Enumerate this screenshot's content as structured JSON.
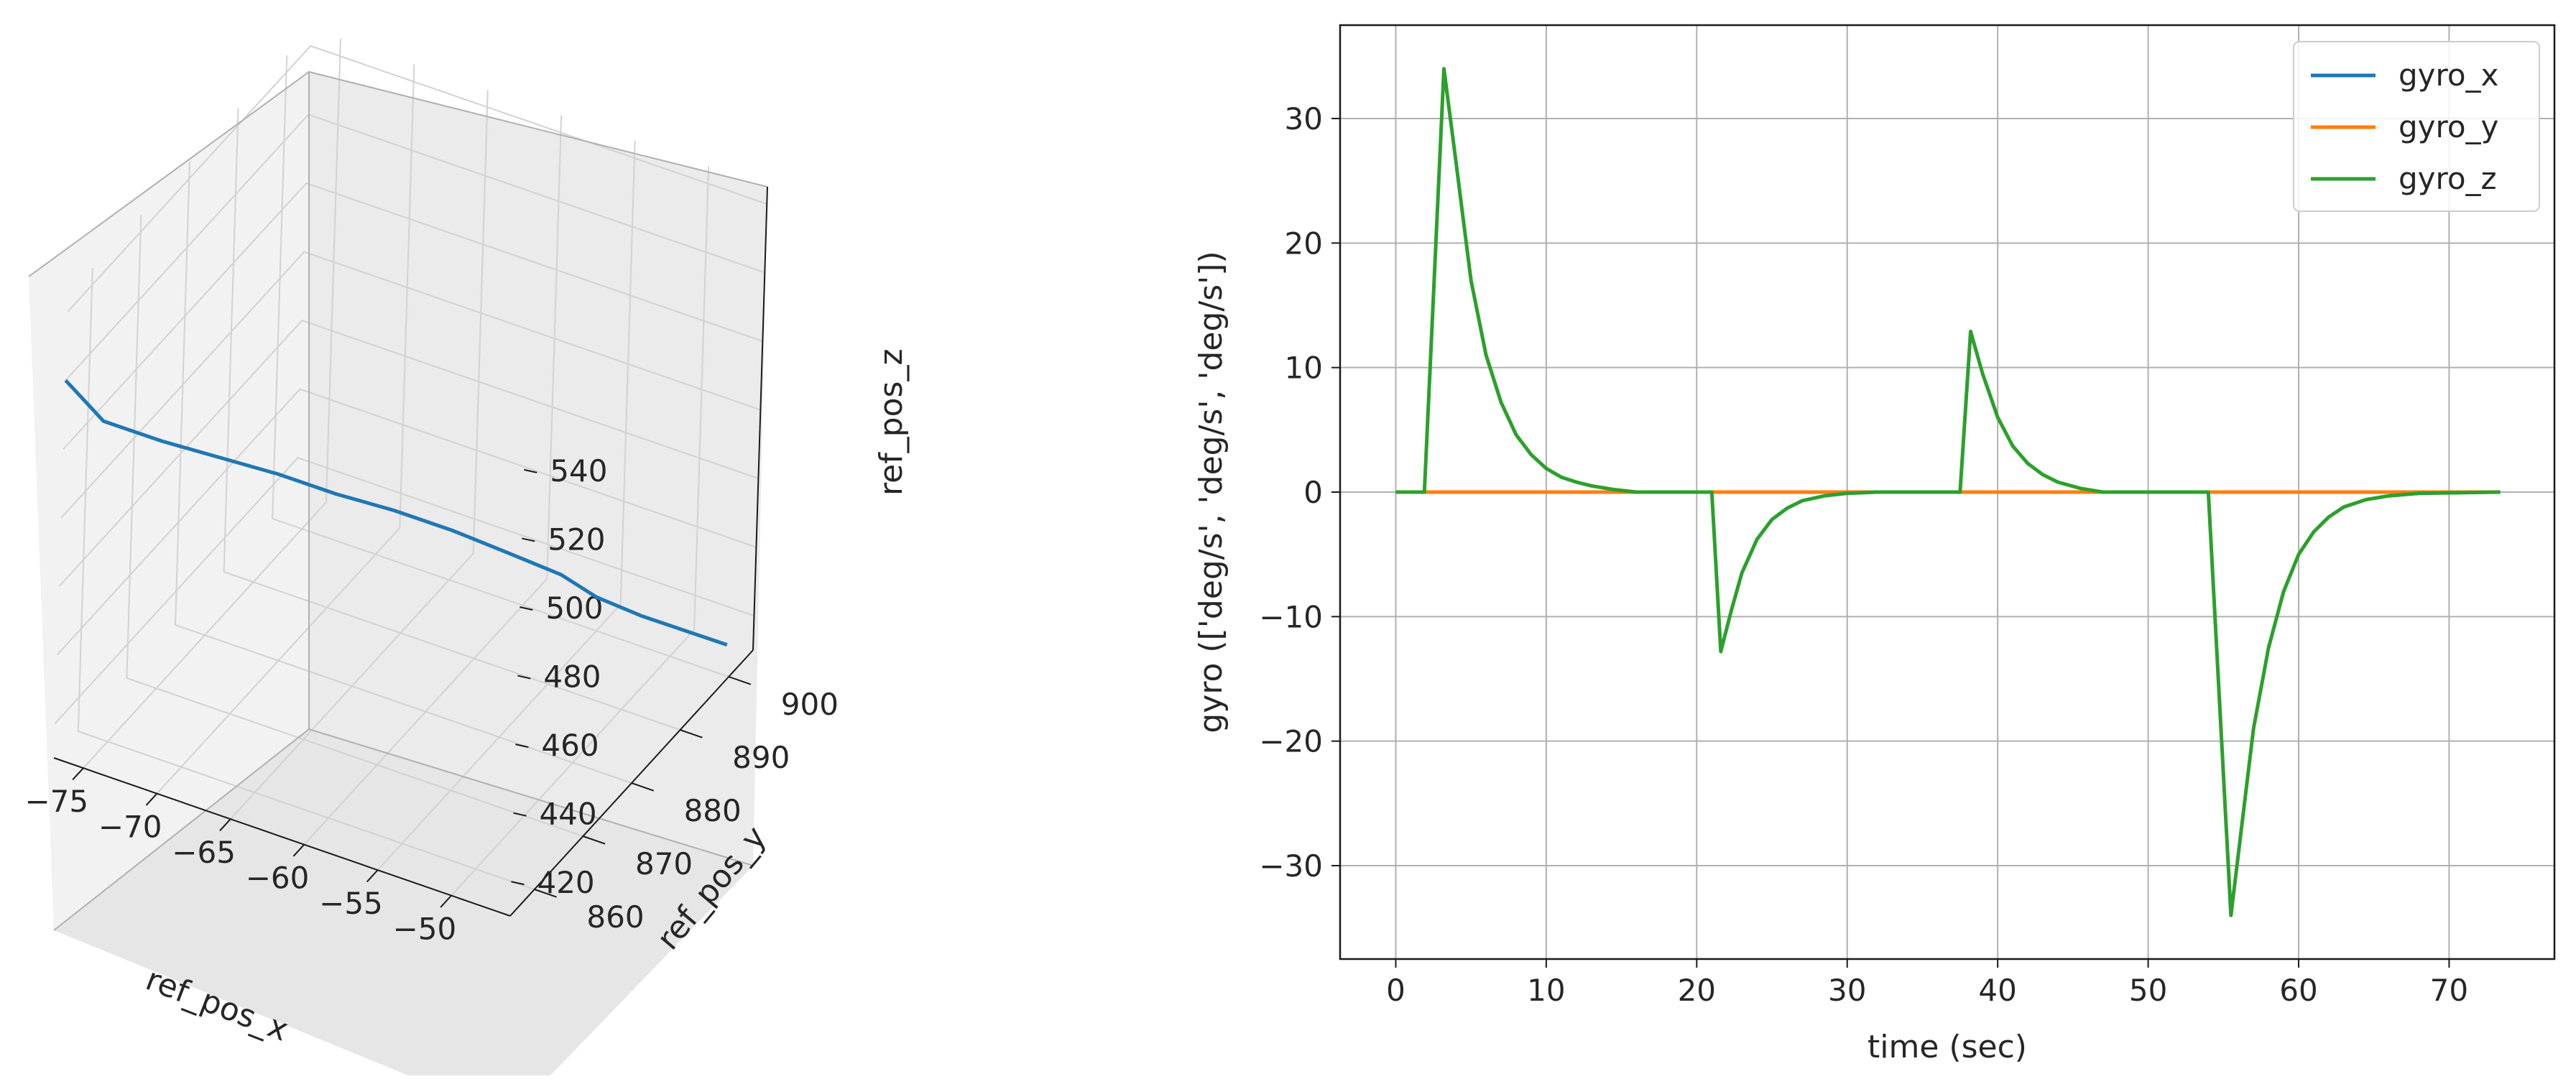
{
  "chart_data": [
    {
      "type": "line",
      "projection": "3d",
      "xlabel": "ref_pos_x",
      "ylabel": "ref_pos_y",
      "zlabel": "ref_pos_z",
      "xticks": [
        "−75",
        "−70",
        "−65",
        "−60",
        "−55",
        "−50"
      ],
      "yticks": [
        "860",
        "870",
        "880",
        "890",
        "900"
      ],
      "zticks": [
        "420",
        "440",
        "460",
        "480",
        "500",
        "520",
        "540"
      ],
      "xlim": [
        -77,
        -46
      ],
      "ylim": [
        855,
        905
      ],
      "zlim": [
        410,
        545
      ],
      "grid": true,
      "series": [
        {
          "color": "#1f77b4",
          "points": [
            {
              "x": -77.0,
              "y": 855,
              "z": 520
            },
            {
              "x": -76.0,
              "y": 856,
              "z": 514
            },
            {
              "x": -75.0,
              "y": 857,
              "z": 508
            },
            {
              "x": -72.0,
              "y": 860,
              "z": 502
            },
            {
              "x": -69.0,
              "y": 863,
              "z": 497
            },
            {
              "x": -66.0,
              "y": 866,
              "z": 492
            },
            {
              "x": -63.0,
              "y": 869,
              "z": 486
            },
            {
              "x": -60.0,
              "y": 872,
              "z": 481
            },
            {
              "x": -57.0,
              "y": 875,
              "z": 475
            },
            {
              "x": -54.0,
              "y": 878,
              "z": 468
            },
            {
              "x": -51.5,
              "y": 881,
              "z": 461
            },
            {
              "x": -50.0,
              "y": 884,
              "z": 452
            },
            {
              "x": -48.5,
              "y": 889,
              "z": 441
            },
            {
              "x": -47.5,
              "y": 895,
              "z": 429
            },
            {
              "x": -46.5,
              "y": 901,
              "z": 417
            }
          ]
        }
      ]
    },
    {
      "type": "line",
      "xlabel": "time (sec)",
      "ylabel": "gyro (['deg/s', 'deg/s', 'deg/s'])",
      "xlim": [
        -3.7,
        77
      ],
      "ylim": [
        -37.5,
        37.5
      ],
      "xticks": [
        "0",
        "10",
        "20",
        "30",
        "40",
        "50",
        "60",
        "70"
      ],
      "yticks": [
        "−30",
        "−20",
        "−10",
        "0",
        "10",
        "20",
        "30"
      ],
      "xtick_values": [
        0,
        10,
        20,
        30,
        40,
        50,
        60,
        70
      ],
      "ytick_values": [
        -30,
        -20,
        -10,
        0,
        10,
        20,
        30
      ],
      "grid": true,
      "legend_position": "top-right",
      "series": [
        {
          "name": "gyro_x",
          "color": "#1f77b4",
          "x": [
            0,
            73.4
          ],
          "y": [
            0,
            0
          ]
        },
        {
          "name": "gyro_y",
          "color": "#ff7f0e",
          "x": [
            0,
            73.4
          ],
          "y": [
            0,
            0
          ]
        },
        {
          "name": "gyro_z",
          "color": "#2ca02c",
          "x": [
            0,
            1.9,
            3.2,
            4.0,
            5.0,
            6.0,
            7.0,
            8.0,
            9.0,
            10.0,
            11.0,
            12.0,
            13.0,
            14.5,
            16.0,
            21.0,
            21.6,
            22.3,
            23.0,
            24.0,
            25.0,
            26.0,
            27.0,
            28.5,
            30.0,
            32.0,
            37.5,
            38.2,
            39.0,
            40.0,
            41.0,
            42.0,
            43.0,
            44.0,
            45.5,
            47.0,
            54.0,
            55.5,
            56.3,
            57.0,
            58.0,
            59.0,
            60.0,
            61.0,
            62.0,
            63.0,
            64.5,
            66.0,
            68.0,
            73.4
          ],
          "y": [
            0,
            0,
            34,
            26.5,
            17,
            11,
            7.2,
            4.6,
            3.0,
            1.9,
            1.2,
            0.8,
            0.5,
            0.2,
            0,
            0,
            -12.8,
            -9.5,
            -6.5,
            -3.8,
            -2.2,
            -1.3,
            -0.7,
            -0.3,
            -0.1,
            0,
            0,
            12.9,
            9.5,
            6.0,
            3.7,
            2.3,
            1.4,
            0.8,
            0.3,
            0,
            0,
            -34,
            -26,
            -19,
            -12.5,
            -8.0,
            -5.0,
            -3.2,
            -2.0,
            -1.2,
            -0.6,
            -0.3,
            -0.1,
            0
          ]
        }
      ]
    }
  ]
}
